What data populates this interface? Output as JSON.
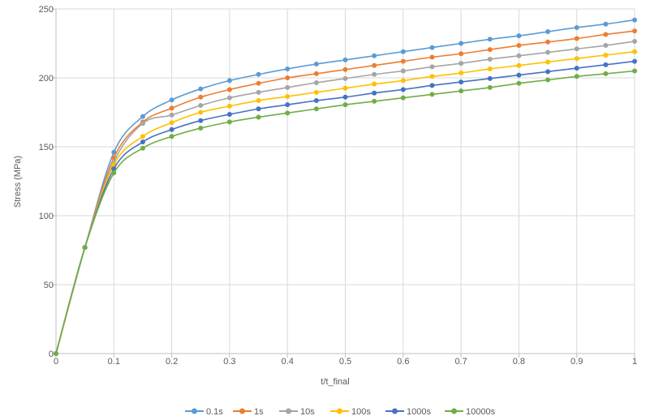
{
  "chart_data": {
    "type": "line",
    "title": "",
    "xlabel": "t/t_final",
    "ylabel": "Stress (MPa)",
    "xlim": [
      0,
      1
    ],
    "ylim": [
      0,
      250
    ],
    "x_ticks": [
      "0",
      "0.1",
      "0.2",
      "0.3",
      "0.4",
      "0.5",
      "0.6",
      "0.7",
      "0.8",
      "0.9",
      "1"
    ],
    "y_ticks": [
      "0",
      "50",
      "100",
      "150",
      "200",
      "250"
    ],
    "grid": true,
    "legend_position": "bottom",
    "x": [
      0,
      0.05,
      0.1,
      0.15,
      0.2,
      0.25,
      0.3,
      0.35,
      0.4,
      0.45,
      0.5,
      0.55,
      0.6,
      0.65,
      0.7,
      0.75,
      0.8,
      0.85,
      0.9,
      0.95,
      1
    ],
    "series": [
      {
        "name": "0.1s",
        "color": "#5b9bd5",
        "values": [
          0,
          77,
          146,
          172,
          184,
          192,
          198,
          202.5,
          206.5,
          210,
          213,
          216,
          219,
          222,
          225,
          228,
          230.5,
          233.5,
          236.5,
          239,
          242
        ]
      },
      {
        "name": "1s",
        "color": "#ed7d31",
        "values": [
          0,
          77,
          142,
          168,
          178,
          186,
          191.5,
          196,
          200,
          203,
          206,
          209,
          212,
          215,
          217.5,
          220.5,
          223.5,
          226,
          228.5,
          231.5,
          234
        ]
      },
      {
        "name": "10s",
        "color": "#a5a5a5",
        "values": [
          0,
          77,
          139,
          167,
          173,
          180,
          185.5,
          189.5,
          193,
          196.5,
          199.5,
          202.5,
          205,
          208,
          210.5,
          213.5,
          216,
          218.5,
          221,
          223.5,
          226.5
        ]
      },
      {
        "name": "100s",
        "color": "#ffc000",
        "values": [
          0,
          77,
          137,
          157.5,
          167.5,
          175,
          179.5,
          183.5,
          186.5,
          189.5,
          192.5,
          195.5,
          198,
          201,
          203.5,
          206.5,
          209,
          211.5,
          214,
          216.5,
          219
        ]
      },
      {
        "name": "1000s",
        "color": "#4472c4",
        "values": [
          0,
          77,
          134,
          153.5,
          162.5,
          169,
          173.5,
          177.5,
          180.5,
          183.5,
          186,
          189,
          191.5,
          194.5,
          197,
          199.5,
          202,
          204.5,
          207,
          209.5,
          212
        ]
      },
      {
        "name": "10000s",
        "color": "#70ad47",
        "values": [
          0,
          77,
          131,
          149,
          157.5,
          163.5,
          168,
          171.5,
          174.5,
          177.5,
          180.5,
          183,
          185.5,
          188,
          190.5,
          193,
          196,
          198.5,
          201,
          203,
          205
        ]
      }
    ]
  }
}
